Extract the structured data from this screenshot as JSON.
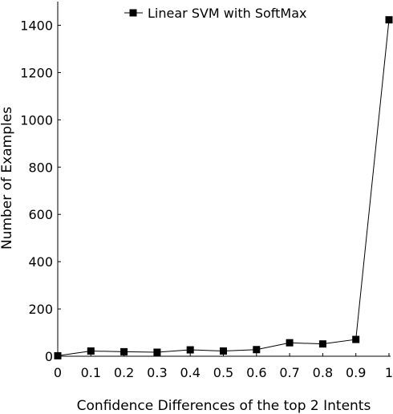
{
  "chart_data": {
    "type": "line",
    "x": [
      0,
      0.1,
      0.2,
      0.3,
      0.4,
      0.5,
      0.6,
      0.7,
      0.8,
      0.9,
      1
    ],
    "series": [
      {
        "name": "Linear SVM with SoftMax",
        "values": [
          2,
          22,
          19,
          17,
          27,
          22,
          28,
          57,
          52,
          71,
          1423
        ],
        "color": "#000000",
        "marker": "square"
      }
    ],
    "xlabel": "Confidence Differences of the top 2 Intents",
    "ylabel": "Number of Examples",
    "xlim": [
      0,
      1
    ],
    "ylim": [
      0,
      1500
    ],
    "x_ticks": [
      "0",
      "0.1",
      "0.2",
      "0.3",
      "0.4",
      "0.5",
      "0.6",
      "0.7",
      "0.8",
      "0.9",
      "1"
    ],
    "y_ticks": [
      "0",
      "200",
      "400",
      "600",
      "800",
      "1000",
      "1200",
      "1400"
    ],
    "legend": "top-center",
    "grid": false
  }
}
